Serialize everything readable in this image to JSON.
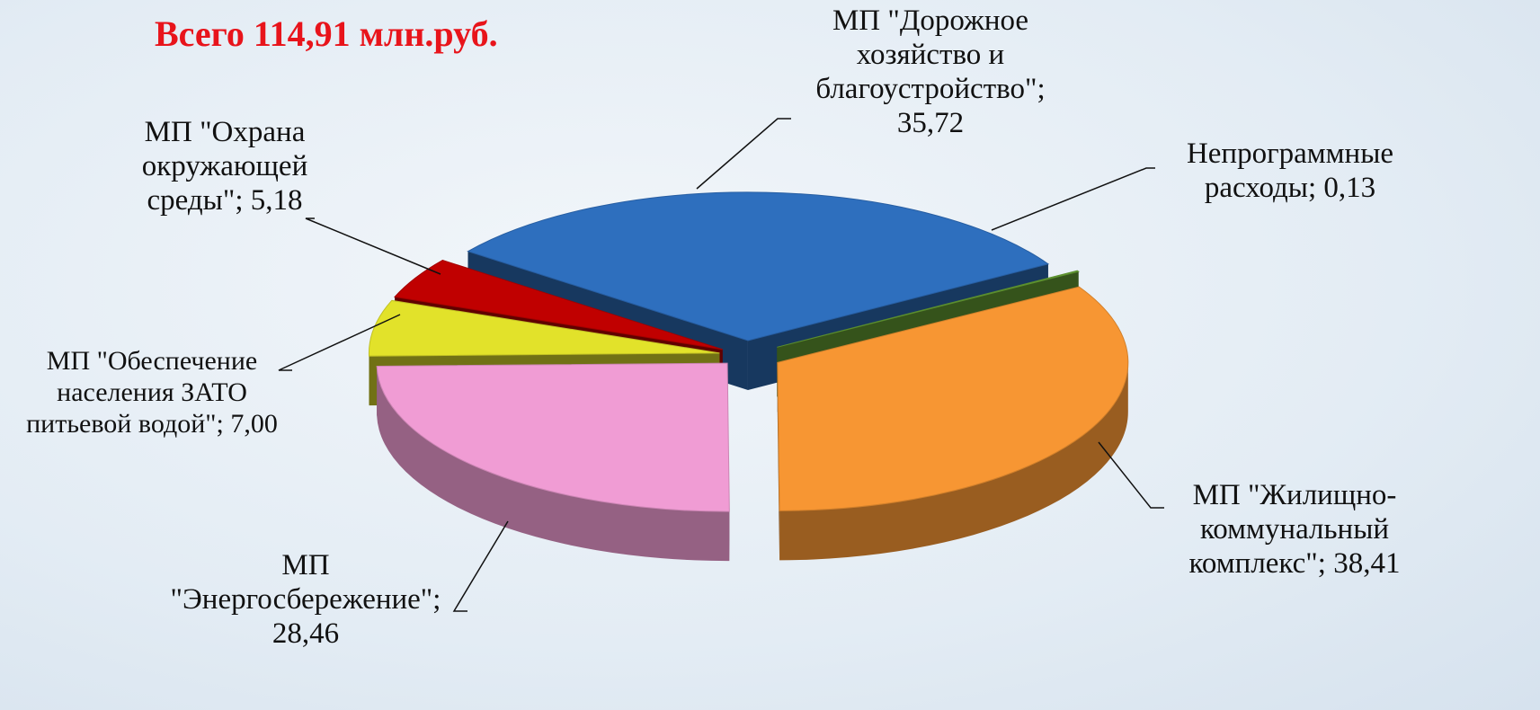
{
  "chart_data": {
    "type": "pie3d",
    "title": "Всего 114,91 млн.руб.",
    "categories": [
      "МП \"Дорожное хозяйство и благоустройство\"",
      "Непрограммные расходы",
      "МП \"Жилищно-коммунальный комплекс\"",
      "МП \"Энергосбережение\"",
      "МП \"Обеспечение населения ЗАТО питьевой водой\"",
      "МП \"Охрана окружающей среды\""
    ],
    "values": [
      35.72,
      0.13,
      38.41,
      28.46,
      7.0,
      5.18
    ],
    "value_labels": [
      "35,72",
      "0,13",
      "38,41",
      "28,46",
      "7,00",
      "5,18"
    ],
    "label_separator": "; ",
    "colors": [
      "#2e6fbe",
      "#6aa636",
      "#f79633",
      "#f09cd4",
      "#e2e22a",
      "#c00000"
    ]
  }
}
